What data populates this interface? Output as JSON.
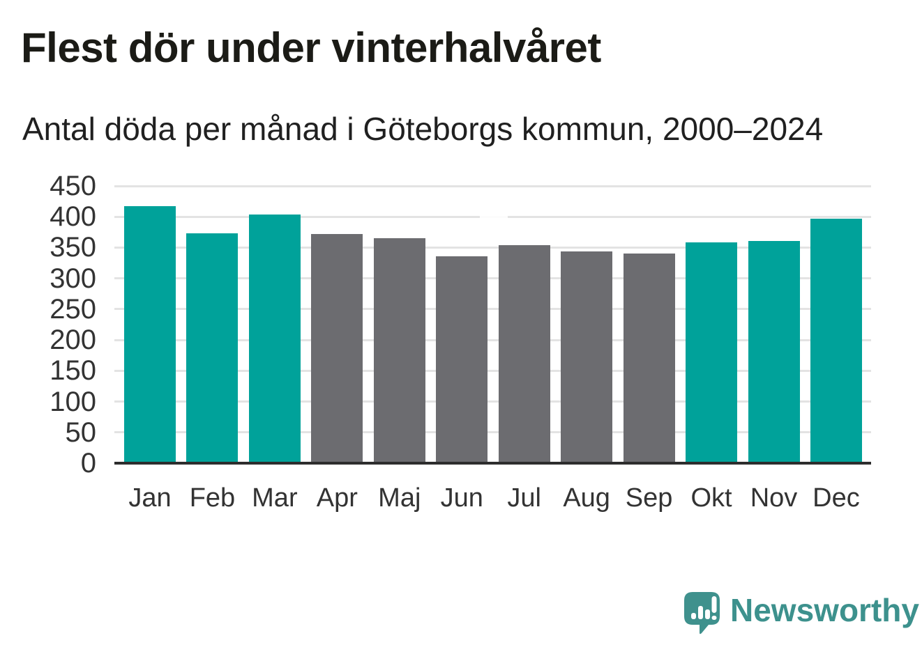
{
  "page": {
    "title": "Flest dör under vinterhalvåret",
    "subtitle": "Antal döda per månad i Göteborgs kommun, 2000–2024"
  },
  "chart_data": {
    "type": "bar",
    "title": "Flest dör under vinterhalvåret",
    "subtitle": "Antal döda per månad i Göteborgs kommun, 2000–2024",
    "categories": [
      "Jan",
      "Feb",
      "Mar",
      "Apr",
      "Maj",
      "Jun",
      "Jul",
      "Aug",
      "Sep",
      "Okt",
      "Nov",
      "Dec"
    ],
    "values": [
      417,
      373,
      404,
      372,
      365,
      336,
      354,
      344,
      340,
      359,
      361,
      397
    ],
    "bar_colors": [
      "#00a29a",
      "#00a29a",
      "#00a29a",
      "#6c6c70",
      "#6c6c70",
      "#6c6c70",
      "#6c6c70",
      "#6c6c70",
      "#6c6c70",
      "#00a29a",
      "#00a29a",
      "#00a29a"
    ],
    "xlabel": "",
    "ylabel": "",
    "ylim": [
      0,
      450
    ],
    "yticks": [
      0,
      50,
      100,
      150,
      200,
      250,
      300,
      350,
      400,
      450
    ],
    "grid": "horizontal",
    "legend": "none"
  },
  "colors": {
    "winter_bar": "#00a29a",
    "summer_bar": "#6c6c70",
    "gridline": "#e3e3e3",
    "axis_line": "#2d2d2d",
    "axis_label_text": "#333333",
    "title_text": "#1b1b16",
    "logo_teal": "#3d918d",
    "background": "#ffffff"
  },
  "branding": {
    "logo_text": "Newsworthy",
    "logo_icon": "newsworthy-speech-bubble-bar-chart-icon"
  }
}
